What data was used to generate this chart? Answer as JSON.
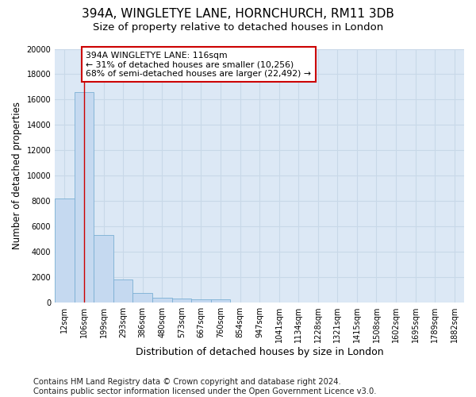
{
  "title1": "394A, WINGLETYE LANE, HORNCHURCH, RM11 3DB",
  "title2": "Size of property relative to detached houses in London",
  "xlabel": "Distribution of detached houses by size in London",
  "ylabel": "Number of detached properties",
  "categories": [
    "12sqm",
    "106sqm",
    "199sqm",
    "293sqm",
    "386sqm",
    "480sqm",
    "573sqm",
    "667sqm",
    "760sqm",
    "854sqm",
    "947sqm",
    "1041sqm",
    "1134sqm",
    "1228sqm",
    "1321sqm",
    "1415sqm",
    "1508sqm",
    "1602sqm",
    "1695sqm",
    "1789sqm",
    "1882sqm"
  ],
  "values": [
    8200,
    16600,
    5300,
    1850,
    750,
    350,
    300,
    240,
    230,
    0,
    0,
    0,
    0,
    0,
    0,
    0,
    0,
    0,
    0,
    0,
    0
  ],
  "bar_color": "#c5d9f0",
  "bar_edge_color": "#7bafd4",
  "vline_x": 1,
  "annotation_text": "394A WINGLETYE LANE: 116sqm\n← 31% of detached houses are smaller (10,256)\n68% of semi-detached houses are larger (22,492) →",
  "annotation_box_facecolor": "#ffffff",
  "annotation_box_edgecolor": "#cc0000",
  "vline_color": "#cc0000",
  "ylim": [
    0,
    20000
  ],
  "yticks": [
    0,
    2000,
    4000,
    6000,
    8000,
    10000,
    12000,
    14000,
    16000,
    18000,
    20000
  ],
  "grid_color": "#c8d8e8",
  "bg_color": "#dce8f5",
  "footer": "Contains HM Land Registry data © Crown copyright and database right 2024.\nContains public sector information licensed under the Open Government Licence v3.0.",
  "title1_fontsize": 11,
  "title2_fontsize": 9.5,
  "ylabel_fontsize": 8.5,
  "xlabel_fontsize": 9,
  "tick_fontsize": 7,
  "annotation_fontsize": 7.8,
  "footer_fontsize": 7.2
}
